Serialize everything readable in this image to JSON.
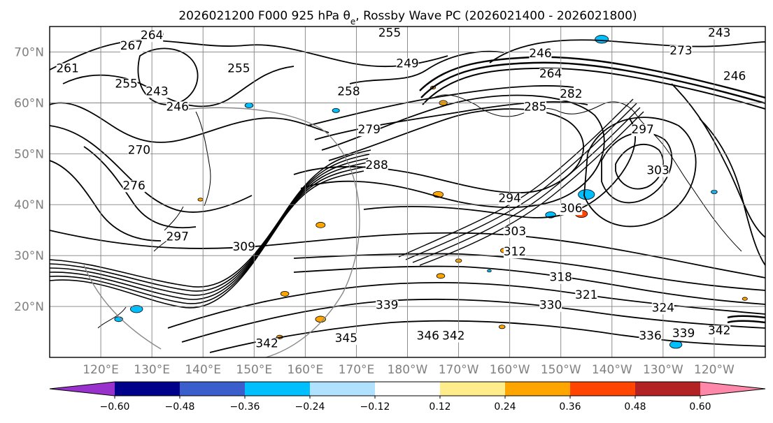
{
  "title_text": "2026021200 F000 925 hPa θ",
  "title_sub": "e",
  "title_rest": ", Rossby Wave PC (2026021400 - 2026021800)",
  "map": {
    "lat_range": [
      10,
      75
    ],
    "lon_range": [
      110,
      250
    ],
    "lat_ticks": [
      {
        "value": 20,
        "label": "20°N"
      },
      {
        "value": 30,
        "label": "30°N"
      },
      {
        "value": 40,
        "label": "40°N"
      },
      {
        "value": 50,
        "label": "50°N"
      },
      {
        "value": 60,
        "label": "60°N"
      },
      {
        "value": 70,
        "label": "70°N"
      }
    ],
    "lon_ticks": [
      {
        "value": 120,
        "label": "120°E"
      },
      {
        "value": 130,
        "label": "130°E"
      },
      {
        "value": 140,
        "label": "140°E"
      },
      {
        "value": 150,
        "label": "150°E"
      },
      {
        "value": 160,
        "label": "160°E"
      },
      {
        "value": 170,
        "label": "170°E"
      },
      {
        "value": 180,
        "label": "180°W"
      },
      {
        "value": 190,
        "label": "170°W"
      },
      {
        "value": 200,
        "label": "160°W"
      },
      {
        "value": 210,
        "label": "150°W"
      },
      {
        "value": 220,
        "label": "140°W"
      },
      {
        "value": 230,
        "label": "130°W"
      },
      {
        "value": 240,
        "label": "120°W"
      }
    ],
    "contour_labels": [
      {
        "text": "264",
        "lon": 130,
        "lat": 72.5
      },
      {
        "text": "267",
        "lon": 126,
        "lat": 70.5
      },
      {
        "text": "261",
        "lon": 113.5,
        "lat": 66
      },
      {
        "text": "255",
        "lon": 125,
        "lat": 63
      },
      {
        "text": "243",
        "lon": 131,
        "lat": 61.5
      },
      {
        "text": "246",
        "lon": 135,
        "lat": 58.5
      },
      {
        "text": "255",
        "lon": 147,
        "lat": 66
      },
      {
        "text": "258",
        "lon": 168.5,
        "lat": 61.5
      },
      {
        "text": "249",
        "lon": 180,
        "lat": 67
      },
      {
        "text": "255",
        "lon": 176.5,
        "lat": 73
      },
      {
        "text": "279",
        "lon": 172.5,
        "lat": 54
      },
      {
        "text": "288",
        "lon": 174,
        "lat": 47
      },
      {
        "text": "270",
        "lon": 127.5,
        "lat": 50
      },
      {
        "text": "276",
        "lon": 126.5,
        "lat": 43
      },
      {
        "text": "297",
        "lon": 135,
        "lat": 33
      },
      {
        "text": "309",
        "lon": 148,
        "lat": 31
      },
      {
        "text": "246",
        "lon": 206,
        "lat": 69
      },
      {
        "text": "264",
        "lon": 208,
        "lat": 65
      },
      {
        "text": "282",
        "lon": 212,
        "lat": 61
      },
      {
        "text": "285",
        "lon": 205,
        "lat": 58.5
      },
      {
        "text": "297",
        "lon": 226,
        "lat": 54
      },
      {
        "text": "303",
        "lon": 229,
        "lat": 46
      },
      {
        "text": "294",
        "lon": 200,
        "lat": 40.5
      },
      {
        "text": "306",
        "lon": 212,
        "lat": 38.5
      },
      {
        "text": "303",
        "lon": 201,
        "lat": 34
      },
      {
        "text": "312",
        "lon": 201,
        "lat": 30
      },
      {
        "text": "318",
        "lon": 210,
        "lat": 25
      },
      {
        "text": "321",
        "lon": 215,
        "lat": 21.5
      },
      {
        "text": "324",
        "lon": 230,
        "lat": 19
      },
      {
        "text": "330",
        "lon": 208,
        "lat": 19.5
      },
      {
        "text": "339",
        "lon": 176,
        "lat": 19.5
      },
      {
        "text": "345",
        "lon": 168,
        "lat": 13
      },
      {
        "text": "346",
        "lon": 184,
        "lat": 13.5
      },
      {
        "text": "342",
        "lon": 189,
        "lat": 13.5
      },
      {
        "text": "336",
        "lon": 227.5,
        "lat": 13.5
      },
      {
        "text": "339",
        "lon": 234,
        "lat": 14
      },
      {
        "text": "342",
        "lon": 241,
        "lat": 14.5
      },
      {
        "text": "342",
        "lon": 152.5,
        "lat": 12
      },
      {
        "text": "273",
        "lon": 233.5,
        "lat": 69.5
      },
      {
        "text": "243",
        "lon": 241,
        "lat": 73
      },
      {
        "text": "246",
        "lon": 244,
        "lat": 64.5
      }
    ],
    "colors": {
      "land_line": "#000000",
      "grid": "#808080",
      "contour": "#000000"
    }
  },
  "colorbar": {
    "colors": [
      "#9932cc",
      "#00008b",
      "#3a5fcd",
      "#00bfff",
      "#b0e2ff",
      "#ffffff",
      "#ffec8b",
      "#ffa500",
      "#ff4500",
      "#b22222",
      "#ff88aa"
    ],
    "tick_labels": [
      "−0.60",
      "−0.48",
      "−0.36",
      "−0.24",
      "−0.12",
      "0.12",
      "0.24",
      "0.36",
      "0.48",
      "0.60"
    ]
  },
  "shaded_areas": [
    {
      "color": "#00bfff",
      "lon": 131,
      "lat": 73.5,
      "r": 1.2
    },
    {
      "color": "#00bfff",
      "lon": 218,
      "lat": 72.5,
      "r": 1.3
    },
    {
      "color": "#00bfff",
      "lon": 149,
      "lat": 59.5,
      "r": 0.8
    },
    {
      "color": "#00bfff",
      "lon": 166,
      "lat": 58.5,
      "r": 0.7
    },
    {
      "color": "#ffa500",
      "lon": 187,
      "lat": 60,
      "r": 0.8
    },
    {
      "color": "#ffa500",
      "lon": 185,
      "lat": 63,
      "r": 0.5
    },
    {
      "color": "#00bfff",
      "lon": 215,
      "lat": 42,
      "r": 1.6
    },
    {
      "color": "#00bfff",
      "lon": 208,
      "lat": 38,
      "r": 1.0
    },
    {
      "color": "#ff4500",
      "lon": 214,
      "lat": 38.2,
      "r": 1.2
    },
    {
      "color": "#ffa500",
      "lon": 163,
      "lat": 36,
      "r": 0.9
    },
    {
      "color": "#ffa500",
      "lon": 186,
      "lat": 42,
      "r": 1.0
    },
    {
      "color": "#ffa500",
      "lon": 199,
      "lat": 31,
      "r": 0.8
    },
    {
      "color": "#ffa500",
      "lon": 186.5,
      "lat": 26,
      "r": 0.8
    },
    {
      "color": "#ffa500",
      "lon": 190,
      "lat": 29,
      "r": 0.6
    },
    {
      "color": "#00bfff",
      "lon": 127,
      "lat": 19.5,
      "r": 1.2
    },
    {
      "color": "#00bfff",
      "lon": 123.5,
      "lat": 17.5,
      "r": 0.8
    },
    {
      "color": "#ffa500",
      "lon": 156,
      "lat": 22.5,
      "r": 0.8
    },
    {
      "color": "#ffa500",
      "lon": 163,
      "lat": 17.5,
      "r": 1.0
    },
    {
      "color": "#ffa500",
      "lon": 198.5,
      "lat": 16,
      "r": 0.6
    },
    {
      "color": "#00bfff",
      "lon": 232.5,
      "lat": 12.5,
      "r": 1.2
    },
    {
      "color": "#ffa500",
      "lon": 139.5,
      "lat": 41,
      "r": 0.5
    },
    {
      "color": "#00bfff",
      "lon": 240,
      "lat": 42.5,
      "r": 0.6
    },
    {
      "color": "#ffa500",
      "lon": 246,
      "lat": 21.5,
      "r": 0.5
    },
    {
      "color": "#ffa500",
      "lon": 155,
      "lat": 14,
      "r": 0.6
    },
    {
      "color": "#00bfff",
      "lon": 196,
      "lat": 27,
      "r": 0.4
    }
  ]
}
